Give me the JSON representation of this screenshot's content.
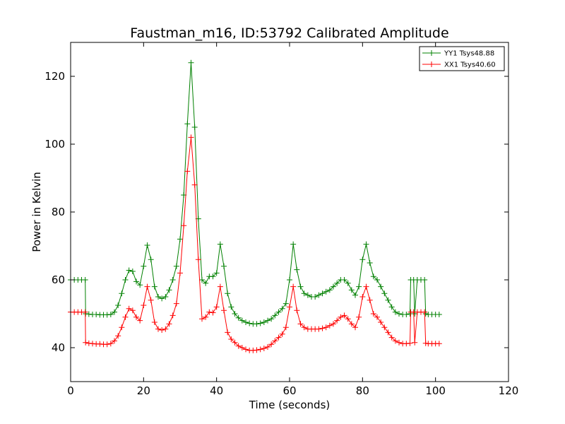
{
  "chart_data": {
    "type": "line",
    "title": "Faustman_m16, ID:53792 Calibrated Amplitude",
    "xlabel": "Time (seconds)",
    "ylabel": "Power in Kelvin",
    "xlim": [
      0,
      120
    ],
    "ylim": [
      30,
      130
    ],
    "xticks": [
      0,
      20,
      40,
      60,
      80,
      100,
      120
    ],
    "yticks": [
      40,
      60,
      80,
      100,
      120
    ],
    "grid": false,
    "legend": "top-right",
    "marker": "+",
    "series": [
      {
        "name": "YY1 Tsys48.88",
        "color": "#008000",
        "points": [
          [
            0,
            60
          ],
          [
            1,
            60
          ],
          [
            2,
            60
          ],
          [
            3,
            60
          ],
          [
            4,
            60
          ],
          [
            4.1,
            50
          ],
          [
            5,
            49.9
          ],
          [
            6,
            49.8
          ],
          [
            7,
            49.8
          ],
          [
            8,
            49.7
          ],
          [
            9,
            49.7
          ],
          [
            10,
            49.7
          ],
          [
            11,
            49.8
          ],
          [
            12,
            50.5
          ],
          [
            13,
            52.5
          ],
          [
            14,
            56
          ],
          [
            15,
            60
          ],
          [
            16,
            62.8
          ],
          [
            17,
            62.5
          ],
          [
            18,
            59.5
          ],
          [
            19,
            58.5
          ],
          [
            20,
            64
          ],
          [
            21,
            70.2
          ],
          [
            22,
            66
          ],
          [
            23,
            58
          ],
          [
            24,
            55
          ],
          [
            25,
            54.5
          ],
          [
            26,
            55
          ],
          [
            27,
            57
          ],
          [
            28,
            60
          ],
          [
            29,
            64
          ],
          [
            30,
            72
          ],
          [
            31,
            85
          ],
          [
            32,
            106
          ],
          [
            33,
            124
          ],
          [
            34,
            105
          ],
          [
            35,
            78
          ],
          [
            36,
            60
          ],
          [
            37,
            59
          ],
          [
            38,
            61
          ],
          [
            39,
            61
          ],
          [
            40,
            62
          ],
          [
            41,
            70.5
          ],
          [
            42,
            64
          ],
          [
            43,
            56
          ],
          [
            44,
            52
          ],
          [
            45,
            50
          ],
          [
            46,
            48.8
          ],
          [
            47,
            48
          ],
          [
            48,
            47.5
          ],
          [
            49,
            47.2
          ],
          [
            50,
            47
          ],
          [
            51,
            47
          ],
          [
            52,
            47.2
          ],
          [
            53,
            47.5
          ],
          [
            54,
            48
          ],
          [
            55,
            48.5
          ],
          [
            56,
            49.5
          ],
          [
            57,
            50.5
          ],
          [
            58,
            51.5
          ],
          [
            59,
            53
          ],
          [
            60,
            60
          ],
          [
            61,
            70.5
          ],
          [
            62,
            63
          ],
          [
            63,
            58
          ],
          [
            64,
            56
          ],
          [
            65,
            55.5
          ],
          [
            66,
            55
          ],
          [
            67,
            55
          ],
          [
            68,
            55.5
          ],
          [
            69,
            56
          ],
          [
            70,
            56.5
          ],
          [
            71,
            57
          ],
          [
            72,
            58
          ],
          [
            73,
            59
          ],
          [
            74,
            60
          ],
          [
            75,
            60
          ],
          [
            76,
            59
          ],
          [
            77,
            57
          ],
          [
            78,
            55.5
          ],
          [
            79,
            58
          ],
          [
            80,
            66
          ],
          [
            81,
            70.5
          ],
          [
            82,
            65
          ],
          [
            83,
            61
          ],
          [
            84,
            60
          ],
          [
            85,
            58
          ],
          [
            86,
            56
          ],
          [
            87,
            54
          ],
          [
            88,
            52
          ],
          [
            89,
            50.5
          ],
          [
            90,
            50
          ],
          [
            91,
            49.8
          ],
          [
            92,
            49.8
          ],
          [
            93,
            50
          ],
          [
            93.2,
            60
          ],
          [
            94,
            60
          ],
          [
            94.3,
            50
          ],
          [
            95,
            60
          ],
          [
            96,
            60
          ],
          [
            97,
            60
          ],
          [
            97.3,
            50
          ],
          [
            98,
            49.8
          ],
          [
            99,
            49.8
          ],
          [
            100,
            49.8
          ],
          [
            101,
            49.8
          ]
        ]
      },
      {
        "name": "XX1 Tsys40.60",
        "color": "#ff0000",
        "points": [
          [
            0,
            50.5
          ],
          [
            1,
            50.5
          ],
          [
            2,
            50.5
          ],
          [
            3,
            50.5
          ],
          [
            4,
            50.5
          ],
          [
            4.1,
            41.5
          ],
          [
            5,
            41.3
          ],
          [
            6,
            41.2
          ],
          [
            7,
            41.1
          ],
          [
            8,
            41.1
          ],
          [
            9,
            41
          ],
          [
            10,
            41
          ],
          [
            11,
            41.2
          ],
          [
            12,
            42
          ],
          [
            13,
            43.5
          ],
          [
            14,
            46
          ],
          [
            15,
            49
          ],
          [
            16,
            51.5
          ],
          [
            17,
            51
          ],
          [
            18,
            49
          ],
          [
            19,
            48
          ],
          [
            20,
            52.5
          ],
          [
            21,
            58
          ],
          [
            22,
            54
          ],
          [
            23,
            47.5
          ],
          [
            24,
            45.5
          ],
          [
            25,
            45.2
          ],
          [
            26,
            45.5
          ],
          [
            27,
            47
          ],
          [
            28,
            49.5
          ],
          [
            29,
            53
          ],
          [
            30,
            62
          ],
          [
            31,
            76
          ],
          [
            32,
            92
          ],
          [
            33,
            102
          ],
          [
            34,
            88
          ],
          [
            35,
            66
          ],
          [
            36,
            48.5
          ],
          [
            37,
            49
          ],
          [
            38,
            50.5
          ],
          [
            39,
            50.3
          ],
          [
            40,
            52
          ],
          [
            41,
            58
          ],
          [
            42,
            51
          ],
          [
            43,
            44.5
          ],
          [
            44,
            42.5
          ],
          [
            45,
            41.5
          ],
          [
            46,
            40.5
          ],
          [
            47,
            40
          ],
          [
            48,
            39.5
          ],
          [
            49,
            39.2
          ],
          [
            50,
            39.2
          ],
          [
            51,
            39.3
          ],
          [
            52,
            39.5
          ],
          [
            53,
            39.8
          ],
          [
            54,
            40.2
          ],
          [
            55,
            41
          ],
          [
            56,
            42
          ],
          [
            57,
            43
          ],
          [
            58,
            44
          ],
          [
            59,
            46
          ],
          [
            60,
            52
          ],
          [
            61,
            58
          ],
          [
            62,
            51
          ],
          [
            63,
            47
          ],
          [
            64,
            46
          ],
          [
            65,
            45.5
          ],
          [
            66,
            45.5
          ],
          [
            67,
            45.5
          ],
          [
            68,
            45.5
          ],
          [
            69,
            45.7
          ],
          [
            70,
            46
          ],
          [
            71,
            46.5
          ],
          [
            72,
            47
          ],
          [
            73,
            48
          ],
          [
            74,
            49
          ],
          [
            75,
            49.5
          ],
          [
            76,
            48.5
          ],
          [
            77,
            47
          ],
          [
            78,
            46
          ],
          [
            79,
            49
          ],
          [
            80,
            55
          ],
          [
            81,
            58
          ],
          [
            82,
            54
          ],
          [
            83,
            50
          ],
          [
            84,
            49
          ],
          [
            85,
            47.5
          ],
          [
            86,
            46
          ],
          [
            87,
            44.5
          ],
          [
            88,
            43
          ],
          [
            89,
            42
          ],
          [
            90,
            41.5
          ],
          [
            91,
            41.2
          ],
          [
            92,
            41.2
          ],
          [
            93,
            41.3
          ],
          [
            93.2,
            50.5
          ],
          [
            94,
            50.5
          ],
          [
            94.3,
            41.5
          ],
          [
            95,
            50.5
          ],
          [
            96,
            50.5
          ],
          [
            97,
            50.5
          ],
          [
            97.3,
            41.3
          ],
          [
            98,
            41.2
          ],
          [
            99,
            41.2
          ],
          [
            100,
            41.2
          ],
          [
            101,
            41.2
          ]
        ]
      }
    ]
  }
}
